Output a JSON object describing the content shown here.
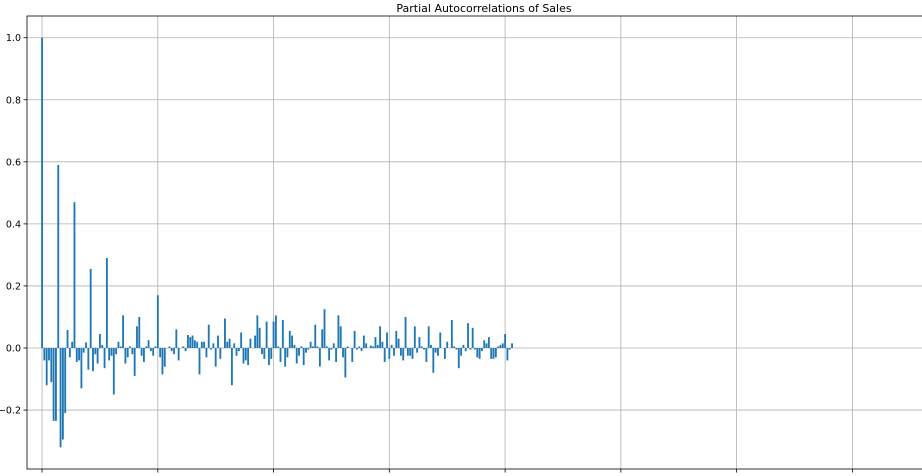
{
  "chart_data": {
    "type": "bar",
    "title": "Partial Autocorrelations of Sales",
    "xlabel": "",
    "ylabel": "",
    "x_start": 0,
    "xlim": [
      -6.5,
      380.5
    ],
    "ylim": [
      -0.39,
      1.07
    ],
    "yticks": [
      -0.2,
      0.0,
      0.2,
      0.4,
      0.6,
      0.8,
      1.0
    ],
    "ytick_labels": [
      "−0.2",
      "0.0",
      "0.2",
      "0.4",
      "0.6",
      "0.8",
      "1.0"
    ],
    "xticks": [
      0,
      50,
      100,
      150,
      200,
      250,
      300,
      350
    ],
    "grid": true,
    "bar_color": "#1f77b4",
    "values": [
      1.0,
      -0.04,
      -0.12,
      -0.04,
      -0.11,
      -0.235,
      -0.235,
      0.59,
      -0.32,
      -0.295,
      -0.21,
      0.058,
      -0.03,
      0.02,
      0.47,
      -0.045,
      -0.04,
      -0.13,
      -0.015,
      0.018,
      -0.07,
      0.255,
      -0.075,
      -0.02,
      -0.05,
      0.045,
      0.01,
      -0.065,
      0.29,
      -0.04,
      -0.025,
      -0.15,
      -0.02,
      0.02,
      0.005,
      0.105,
      -0.05,
      -0.03,
      0.005,
      -0.02,
      -0.09,
      0.07,
      0.1,
      -0.025,
      -0.045,
      0.005,
      0.025,
      -0.01,
      -0.025,
      0.005,
      0.17,
      -0.03,
      -0.085,
      -0.06,
      0.0,
      0.005,
      -0.01,
      -0.02,
      0.06,
      -0.04,
      0.0,
      0.005,
      -0.01,
      0.042,
      0.035,
      0.04,
      0.025,
      0.02,
      -0.085,
      0.02,
      0.02,
      -0.03,
      0.075,
      -0.005,
      0.015,
      -0.06,
      0.04,
      -0.035,
      0.0,
      0.095,
      0.02,
      0.03,
      -0.12,
      0.015,
      -0.025,
      -0.01,
      0.05,
      -0.05,
      -0.04,
      -0.055,
      0.03,
      0.0,
      0.04,
      0.105,
      0.065,
      -0.02,
      -0.035,
      0.085,
      -0.055,
      -0.035,
      0.085,
      0.105,
      0.005,
      -0.045,
      0.09,
      -0.06,
      -0.03,
      0.055,
      0.04,
      0.01,
      -0.05,
      -0.025,
      0.005,
      -0.055,
      -0.015,
      -0.005,
      0.02,
      0.005,
      0.075,
      0.005,
      -0.06,
      0.06,
      0.125,
      0.005,
      -0.04,
      -0.005,
      0.015,
      -0.045,
      0.105,
      0.07,
      -0.03,
      -0.095,
      0.005,
      0.0,
      -0.045,
      0.055,
      -0.005,
      0.005,
      -0.01,
      0.04,
      0.015,
      0.0,
      0.008,
      0.005,
      0.035,
      0.01,
      0.07,
      0.02,
      -0.045,
      0.05,
      -0.035,
      0.01,
      -0.025,
      0.055,
      0.03,
      -0.025,
      -0.04,
      0.1,
      -0.025,
      -0.025,
      -0.035,
      0.07,
      -0.015,
      0.035,
      0.005,
      -0.005,
      -0.045,
      0.07,
      0.01,
      -0.08,
      -0.015,
      -0.025,
      0.05,
      0.0,
      -0.035,
      0.02,
      0.0,
      0.09,
      0.005,
      -0.005,
      -0.065,
      -0.025,
      0.01,
      -0.01,
      0.08,
      -0.005,
      0.065,
      -0.005,
      -0.03,
      -0.035,
      -0.01,
      0.025,
      0.015,
      0.035,
      -0.035,
      -0.035,
      -0.03,
      0.005,
      0.01,
      0.015,
      0.045,
      -0.04,
      -0.005,
      0.015
    ]
  }
}
